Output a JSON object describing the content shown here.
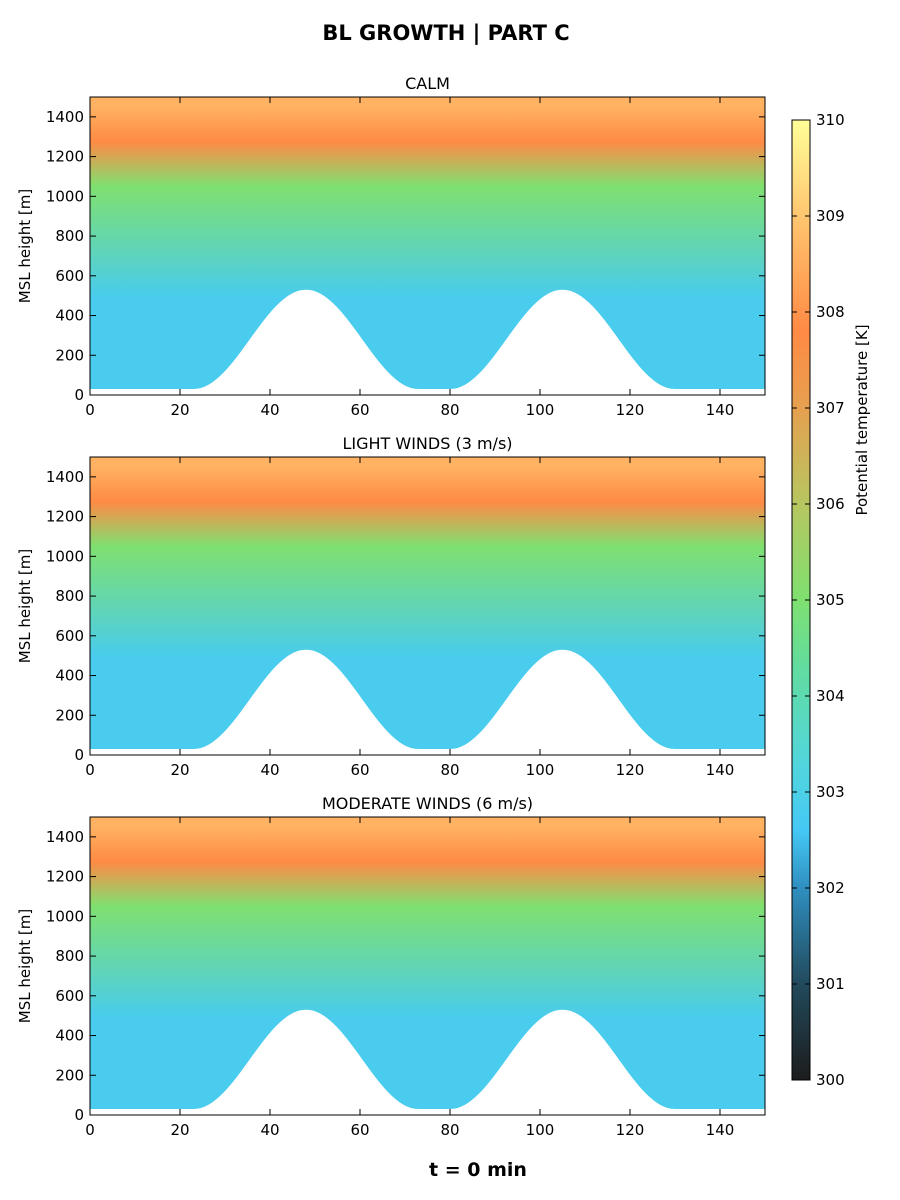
{
  "figure": {
    "title": "BL GROWTH | PART C",
    "footer": "t = 0 min"
  },
  "colorbar": {
    "label": "Potential temperature [K]",
    "range": [
      300,
      310
    ],
    "ticks": [
      "300",
      "301",
      "302",
      "303",
      "304",
      "305",
      "306",
      "307",
      "308",
      "309",
      "310"
    ],
    "colormap_stops": [
      {
        "value": 300,
        "color": "#1c1c1c"
      },
      {
        "value": 301,
        "color": "#224a5c"
      },
      {
        "value": 302,
        "color": "#2f8fc0"
      },
      {
        "value": 302.6,
        "color": "#45c8f5"
      },
      {
        "value": 303.3,
        "color": "#52d6dc"
      },
      {
        "value": 304.3,
        "color": "#62dc9f"
      },
      {
        "value": 305,
        "color": "#7fe070"
      },
      {
        "value": 306,
        "color": "#b7c660"
      },
      {
        "value": 307,
        "color": "#e6a050"
      },
      {
        "value": 307.8,
        "color": "#ff8a45"
      },
      {
        "value": 309,
        "color": "#ffc670"
      },
      {
        "value": 310,
        "color": "#ffff99"
      }
    ]
  },
  "chart_data": [
    {
      "type": "heatmap",
      "title": "CALM",
      "xlabel": "",
      "ylabel": "MSL height [m]",
      "xlim": [
        0,
        150
      ],
      "ylim": [
        0,
        1500
      ],
      "xticks": [
        "0",
        "20",
        "40",
        "60",
        "80",
        "100",
        "120",
        "140"
      ],
      "yticks": [
        "0",
        "200",
        "400",
        "600",
        "800",
        "1000",
        "1200",
        "1400"
      ],
      "terrain": {
        "x": [
          0,
          23,
          48,
          73,
          80,
          105,
          130,
          150
        ],
        "height": [
          30,
          30,
          530,
          30,
          30,
          530,
          30,
          30
        ]
      },
      "temperature_layers": [
        {
          "height_range": [
            30,
            950
          ],
          "theta": 302.8
        },
        {
          "height_range": [
            950,
            1150
          ],
          "theta": 305
        },
        {
          "height_range": [
            1150,
            1400
          ],
          "theta": 307.8
        },
        {
          "height_range": [
            1400,
            1500
          ],
          "theta": 308.6
        }
      ]
    },
    {
      "type": "heatmap",
      "title": "LIGHT WINDS (3 m/s)",
      "xlabel": "",
      "ylabel": "MSL height [m]",
      "xlim": [
        0,
        150
      ],
      "ylim": [
        0,
        1500
      ],
      "xticks": [
        "0",
        "20",
        "40",
        "60",
        "80",
        "100",
        "120",
        "140"
      ],
      "yticks": [
        "0",
        "200",
        "400",
        "600",
        "800",
        "1000",
        "1200",
        "1400"
      ],
      "terrain": {
        "x": [
          0,
          23,
          48,
          73,
          80,
          105,
          130,
          150
        ],
        "height": [
          30,
          30,
          530,
          30,
          30,
          530,
          30,
          30
        ]
      },
      "temperature_layers": [
        {
          "height_range": [
            30,
            950
          ],
          "theta": 302.8
        },
        {
          "height_range": [
            950,
            1150
          ],
          "theta": 305
        },
        {
          "height_range": [
            1150,
            1400
          ],
          "theta": 307.8
        },
        {
          "height_range": [
            1400,
            1500
          ],
          "theta": 308.6
        }
      ]
    },
    {
      "type": "heatmap",
      "title": "MODERATE WINDS (6 m/s)",
      "xlabel": "",
      "ylabel": "MSL height [m]",
      "xlim": [
        0,
        150
      ],
      "ylim": [
        0,
        1500
      ],
      "xticks": [
        "0",
        "20",
        "40",
        "60",
        "80",
        "100",
        "120",
        "140"
      ],
      "yticks": [
        "0",
        "200",
        "400",
        "600",
        "800",
        "1000",
        "1200",
        "1400"
      ],
      "terrain": {
        "x": [
          0,
          23,
          48,
          73,
          80,
          105,
          130,
          150
        ],
        "height": [
          30,
          30,
          530,
          30,
          30,
          530,
          30,
          30
        ]
      },
      "temperature_layers": [
        {
          "height_range": [
            30,
            950
          ],
          "theta": 302.8
        },
        {
          "height_range": [
            950,
            1150
          ],
          "theta": 305
        },
        {
          "height_range": [
            1150,
            1400
          ],
          "theta": 307.8
        },
        {
          "height_range": [
            1400,
            1500
          ],
          "theta": 308.6
        }
      ]
    }
  ]
}
